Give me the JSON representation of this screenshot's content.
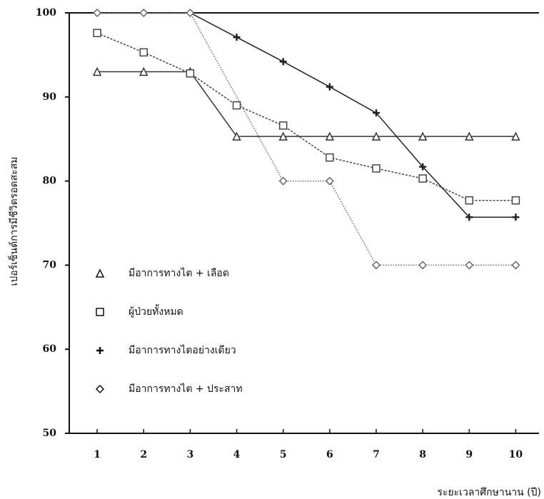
{
  "chart_data": {
    "type": "line",
    "x_label": "ระยะเวลาศึกษานาน (ปี)",
    "y_label": "เปอร์เซ็นต์การมีชีวิตรอดสะสม",
    "xlim": [
      0.4,
      10.5
    ],
    "xticks": [
      1,
      2,
      3,
      4,
      5,
      6,
      7,
      8,
      9,
      10
    ],
    "ylim": [
      50,
      100
    ],
    "yticks": [
      50,
      60,
      70,
      80,
      90,
      100
    ],
    "legend": "lower-left",
    "series": [
      {
        "name": "มีอาการทางไต + เลือด",
        "marker": "triangle",
        "color": "#333333",
        "x": [
          1,
          2,
          3,
          4,
          5,
          6,
          7,
          8,
          9,
          10
        ],
        "values": [
          93,
          93,
          93,
          85.3,
          85.3,
          85.3,
          85.3,
          85.3,
          85.3,
          85.3
        ]
      },
      {
        "name": "ผู้ป่วยทั้งหมด",
        "marker": "square",
        "color": "#444444",
        "x": [
          1,
          2,
          3,
          4,
          5,
          6,
          7,
          8,
          9,
          10
        ],
        "values": [
          97.6,
          95.3,
          92.8,
          89,
          86.6,
          82.8,
          81.5,
          80.3,
          77.7,
          77.7
        ]
      },
      {
        "name": "มีอาการทางไตอย่างเดียว",
        "marker": "plus",
        "color": "#222222",
        "x": [
          1,
          2,
          3,
          4,
          5,
          6,
          7,
          8,
          9,
          10
        ],
        "values": [
          100,
          100,
          100,
          97.1,
          94.2,
          91.2,
          88.1,
          81.7,
          75.7,
          75.7
        ]
      },
      {
        "name": "มีอาการทางไต + ประสาท",
        "marker": "diamond",
        "color": "#666666",
        "x": [
          1,
          2,
          3,
          5,
          6,
          7,
          8,
          9,
          10
        ],
        "values": [
          100,
          100,
          100,
          80,
          80,
          70,
          70,
          70,
          70
        ]
      }
    ]
  }
}
